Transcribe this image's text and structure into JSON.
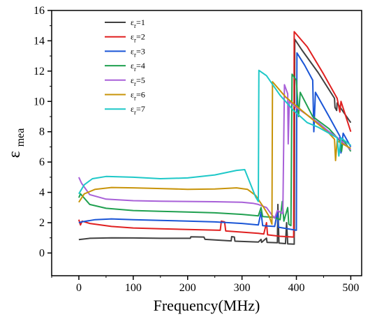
{
  "chart_data": {
    "type": "line",
    "title": "",
    "xlabel": "Frequency(MHz)",
    "ylabel": "ε_mea",
    "ylabel_main": "ε",
    "ylabel_sub": "mea",
    "xlim": [
      -50,
      520
    ],
    "ylim": [
      -1.5,
      16
    ],
    "xticks": [
      0,
      100,
      200,
      300,
      400,
      500
    ],
    "yticks": [
      0,
      2,
      4,
      6,
      8,
      10,
      12,
      14,
      16
    ],
    "grid": false,
    "legend_position": "top-left",
    "series": [
      {
        "name": "εr=1",
        "label_main": "ε",
        "label_sub": "r",
        "label_rest": "=1",
        "color": "#404040",
        "points": [
          [
            0,
            0.88
          ],
          [
            20,
            0.97
          ],
          [
            60,
            1.0
          ],
          [
            100,
            0.99
          ],
          [
            150,
            0.97
          ],
          [
            205,
            0.97
          ],
          [
            206,
            1.07
          ],
          [
            230,
            1.05
          ],
          [
            232,
            0.9
          ],
          [
            280,
            0.8
          ],
          [
            281,
            1.08
          ],
          [
            286,
            1.05
          ],
          [
            287,
            0.78
          ],
          [
            330,
            0.72
          ],
          [
            335,
            0.9
          ],
          [
            336,
            0.7
          ],
          [
            345,
            0.98
          ],
          [
            346,
            0.7
          ],
          [
            365,
            0.68
          ],
          [
            366,
            3.2
          ],
          [
            368,
            0.65
          ],
          [
            380,
            0.62
          ],
          [
            382,
            2.0
          ],
          [
            384,
            0.6
          ],
          [
            396,
            0.58
          ],
          [
            397,
            14.1
          ],
          [
            410,
            13.4
          ],
          [
            440,
            11.9
          ],
          [
            470,
            10.2
          ],
          [
            471,
            9.6
          ],
          [
            474,
            9.4
          ],
          [
            475,
            9.9
          ],
          [
            500,
            8.6
          ]
        ]
      },
      {
        "name": "εr=2",
        "label_main": "ε",
        "label_sub": "r",
        "label_rest": "=2",
        "color": "#e02020",
        "points": [
          [
            0,
            2.2
          ],
          [
            3,
            1.85
          ],
          [
            6,
            2.1
          ],
          [
            20,
            1.95
          ],
          [
            60,
            1.75
          ],
          [
            100,
            1.65
          ],
          [
            150,
            1.6
          ],
          [
            200,
            1.55
          ],
          [
            260,
            1.5
          ],
          [
            262,
            2.1
          ],
          [
            268,
            2.05
          ],
          [
            270,
            1.45
          ],
          [
            330,
            1.3
          ],
          [
            340,
            1.25
          ],
          [
            345,
            2.0
          ],
          [
            347,
            1.2
          ],
          [
            370,
            1.1
          ],
          [
            395,
            1.05
          ],
          [
            396,
            14.6
          ],
          [
            420,
            13.6
          ],
          [
            450,
            11.8
          ],
          [
            475,
            10.2
          ],
          [
            480,
            9.3
          ],
          [
            482,
            10.0
          ],
          [
            500,
            8.0
          ]
        ]
      },
      {
        "name": "εr=3",
        "label_main": "ε",
        "label_sub": "r",
        "label_rest": "=3",
        "color": "#1a55d6",
        "points": [
          [
            0,
            2.0
          ],
          [
            5,
            2.05
          ],
          [
            30,
            2.2
          ],
          [
            60,
            2.25
          ],
          [
            100,
            2.2
          ],
          [
            150,
            2.15
          ],
          [
            200,
            2.1
          ],
          [
            250,
            2.05
          ],
          [
            300,
            1.95
          ],
          [
            330,
            1.85
          ],
          [
            335,
            2.7
          ],
          [
            338,
            1.8
          ],
          [
            360,
            1.75
          ],
          [
            365,
            2.7
          ],
          [
            367,
            1.7
          ],
          [
            400,
            1.5
          ],
          [
            401,
            13.2
          ],
          [
            415,
            12.4
          ],
          [
            430,
            11.4
          ],
          [
            432,
            8.0
          ],
          [
            435,
            10.6
          ],
          [
            460,
            9.0
          ],
          [
            480,
            7.7
          ],
          [
            482,
            6.6
          ],
          [
            486,
            7.9
          ],
          [
            500,
            7.0
          ]
        ]
      },
      {
        "name": "εr=4",
        "label_main": "ε",
        "label_sub": "r",
        "label_rest": "=4",
        "color": "#20a050",
        "points": [
          [
            0,
            3.65
          ],
          [
            3,
            3.9
          ],
          [
            20,
            3.2
          ],
          [
            50,
            2.95
          ],
          [
            100,
            2.8
          ],
          [
            150,
            2.75
          ],
          [
            200,
            2.7
          ],
          [
            250,
            2.65
          ],
          [
            300,
            2.55
          ],
          [
            330,
            2.45
          ],
          [
            335,
            3.0
          ],
          [
            338,
            2.4
          ],
          [
            360,
            2.35
          ],
          [
            370,
            2.2
          ],
          [
            374,
            3.4
          ],
          [
            377,
            2.1
          ],
          [
            384,
            3.0
          ],
          [
            386,
            1.9
          ],
          [
            390,
            1.8
          ],
          [
            392,
            11.8
          ],
          [
            400,
            11.4
          ],
          [
            404,
            9.0
          ],
          [
            407,
            10.6
          ],
          [
            430,
            9.0
          ],
          [
            460,
            8.2
          ],
          [
            480,
            7.4
          ],
          [
            483,
            6.7
          ],
          [
            486,
            7.5
          ],
          [
            500,
            6.7
          ]
        ]
      },
      {
        "name": "εr=5",
        "label_main": "ε",
        "label_sub": "r",
        "label_rest": "=5",
        "color": "#a860d8",
        "points": [
          [
            0,
            5.0
          ],
          [
            5,
            4.6
          ],
          [
            20,
            3.85
          ],
          [
            50,
            3.55
          ],
          [
            100,
            3.45
          ],
          [
            150,
            3.42
          ],
          [
            200,
            3.4
          ],
          [
            250,
            3.38
          ],
          [
            300,
            3.35
          ],
          [
            320,
            3.28
          ],
          [
            330,
            3.2
          ],
          [
            345,
            3.0
          ],
          [
            355,
            2.5
          ],
          [
            360,
            2.3
          ],
          [
            365,
            2.8
          ],
          [
            375,
            2.6
          ],
          [
            378,
            11.1
          ],
          [
            384,
            10.5
          ],
          [
            385,
            7.2
          ],
          [
            387,
            10.0
          ],
          [
            400,
            9.6
          ],
          [
            420,
            9.1
          ],
          [
            440,
            8.6
          ],
          [
            460,
            8.0
          ],
          [
            480,
            7.5
          ],
          [
            500,
            6.8
          ]
        ]
      },
      {
        "name": "εr=6",
        "label_main": "ε",
        "label_sub": "r",
        "label_rest": "=6",
        "color": "#c8940a",
        "points": [
          [
            0,
            3.35
          ],
          [
            10,
            3.9
          ],
          [
            30,
            4.2
          ],
          [
            60,
            4.32
          ],
          [
            100,
            4.3
          ],
          [
            150,
            4.25
          ],
          [
            200,
            4.2
          ],
          [
            250,
            4.22
          ],
          [
            290,
            4.3
          ],
          [
            310,
            4.2
          ],
          [
            325,
            3.8
          ],
          [
            340,
            3.0
          ],
          [
            350,
            2.4
          ],
          [
            355,
            1.9
          ],
          [
            356,
            11.3
          ],
          [
            380,
            10.3
          ],
          [
            400,
            9.7
          ],
          [
            420,
            9.1
          ],
          [
            440,
            8.5
          ],
          [
            460,
            7.9
          ],
          [
            470,
            7.5
          ],
          [
            472,
            6.1
          ],
          [
            475,
            7.4
          ],
          [
            500,
            6.9
          ]
        ]
      },
      {
        "name": "εr=7",
        "label_main": "ε",
        "label_sub": "r",
        "label_rest": "=7",
        "color": "#1ec8c8",
        "points": [
          [
            0,
            3.9
          ],
          [
            10,
            4.5
          ],
          [
            25,
            4.9
          ],
          [
            50,
            5.05
          ],
          [
            100,
            5.0
          ],
          [
            150,
            4.9
          ],
          [
            200,
            4.95
          ],
          [
            250,
            5.15
          ],
          [
            290,
            5.45
          ],
          [
            305,
            5.5
          ],
          [
            315,
            4.6
          ],
          [
            325,
            3.7
          ],
          [
            330,
            3.4
          ],
          [
            331,
            12.05
          ],
          [
            345,
            11.7
          ],
          [
            370,
            10.4
          ],
          [
            395,
            9.4
          ],
          [
            420,
            8.6
          ],
          [
            440,
            8.3
          ],
          [
            460,
            7.9
          ],
          [
            475,
            7.6
          ],
          [
            478,
            6.4
          ],
          [
            482,
            7.6
          ],
          [
            500,
            7.1
          ]
        ]
      }
    ]
  }
}
